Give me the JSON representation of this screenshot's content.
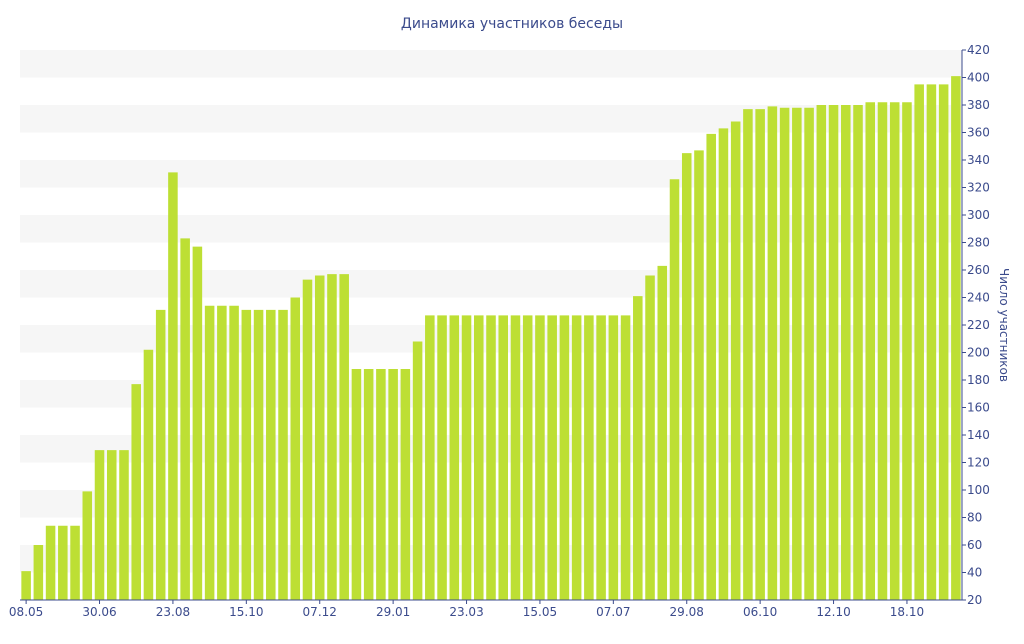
{
  "chart_data": {
    "type": "bar",
    "title": "Динамика участников беседы",
    "xlabel": "",
    "ylabel": "Число участников",
    "ylim": [
      20,
      420
    ],
    "y_ticks": [
      20,
      40,
      60,
      80,
      100,
      120,
      140,
      160,
      180,
      200,
      220,
      240,
      260,
      280,
      300,
      320,
      340,
      360,
      380,
      400,
      420
    ],
    "x_tick_labels": [
      {
        "label": "08.05",
        "index": 0
      },
      {
        "label": "30.06",
        "index": 6
      },
      {
        "label": "23.08",
        "index": 12
      },
      {
        "label": "15.10",
        "index": 18
      },
      {
        "label": "07.12",
        "index": 24
      },
      {
        "label": "29.01",
        "index": 30
      },
      {
        "label": "23.03",
        "index": 36
      },
      {
        "label": "15.05",
        "index": 42
      },
      {
        "label": "07.07",
        "index": 48
      },
      {
        "label": "29.08",
        "index": 54
      },
      {
        "label": "06.10",
        "index": 60
      },
      {
        "label": "12.10",
        "index": 66
      },
      {
        "label": "18.10",
        "index": 72
      }
    ],
    "values": [
      41,
      60,
      74,
      74,
      74,
      99,
      129,
      129,
      129,
      177,
      202,
      231,
      331,
      283,
      277,
      234,
      234,
      234,
      231,
      231,
      231,
      231,
      240,
      253,
      256,
      257,
      257,
      188,
      188,
      188,
      188,
      188,
      208,
      227,
      227,
      227,
      227,
      227,
      227,
      227,
      227,
      227,
      227,
      227,
      227,
      227,
      227,
      227,
      227,
      227,
      241,
      256,
      263,
      326,
      345,
      347,
      359,
      363,
      368,
      377,
      377,
      379,
      378,
      378,
      378,
      380,
      380,
      380,
      380,
      382,
      382,
      382,
      382,
      395,
      395,
      395,
      401
    ],
    "colors": {
      "bar": "#bddf34",
      "axis": "#3b4b8c",
      "grid_band": "#f6f6f6"
    },
    "grid": true,
    "legend": "none"
  }
}
